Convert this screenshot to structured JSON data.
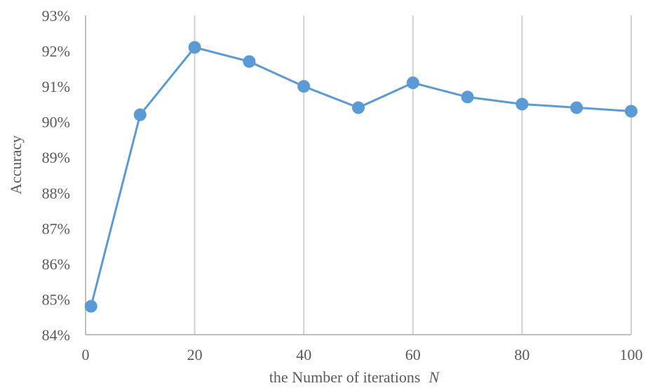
{
  "chart_data": {
    "type": "line",
    "title": "",
    "xlabel": "the Number of iterations",
    "xlabel_var": "N",
    "ylabel": "Accuracy",
    "xlim": [
      0,
      100
    ],
    "ylim": [
      84,
      93
    ],
    "xticks": [
      0,
      20,
      40,
      60,
      80,
      100
    ],
    "yticks": [
      84,
      85,
      86,
      87,
      88,
      89,
      90,
      91,
      92,
      93
    ],
    "ytick_suffix": "%",
    "grid": "vertical",
    "legend": "none",
    "series": [
      {
        "color": "#5b9bd5",
        "x": [
          1,
          10,
          20,
          30,
          40,
          50,
          60,
          70,
          80,
          90,
          100
        ],
        "values": [
          84.8,
          90.2,
          92.1,
          91.7,
          91.0,
          90.4,
          91.1,
          90.7,
          90.5,
          90.4,
          90.3
        ]
      }
    ]
  }
}
